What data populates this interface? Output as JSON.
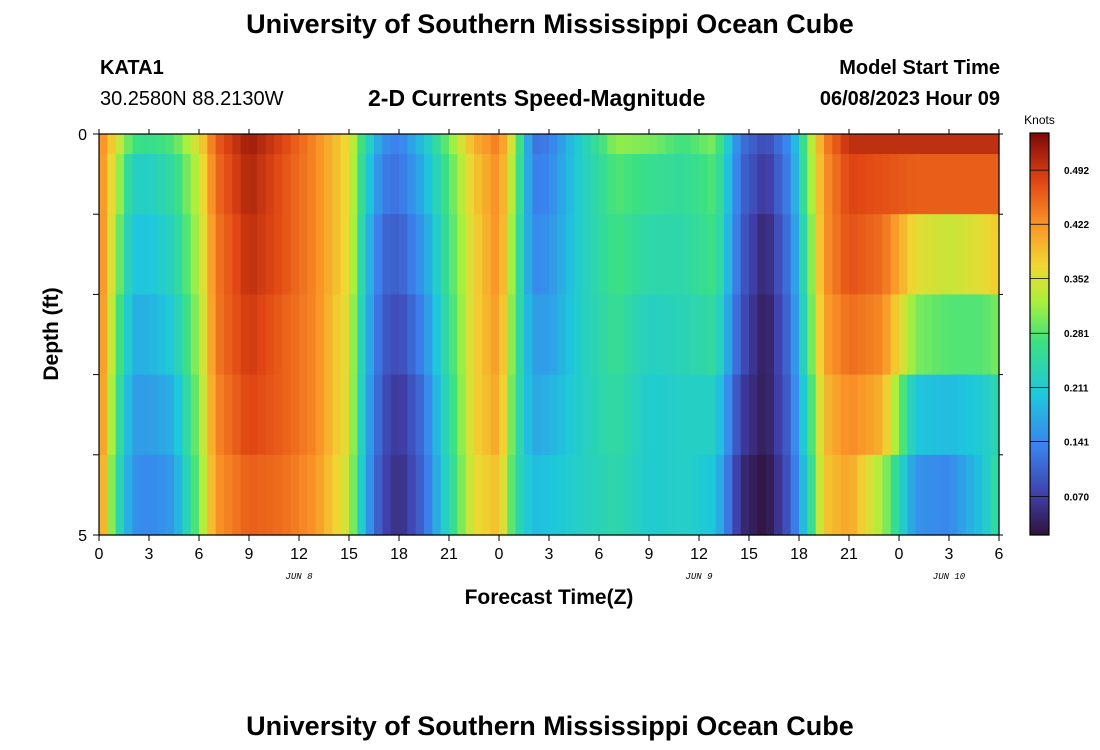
{
  "main_title": "University of Southern Mississippi Ocean Cube",
  "footer_title": "University of Southern Mississippi Ocean Cube",
  "station": {
    "id": "KATA1",
    "coords": "30.2580N  88.2130W"
  },
  "plot_title": "2-D Currents Speed-Magnitude",
  "model_start": {
    "label": "Model Start Time",
    "value": "06/08/2023 Hour 09"
  },
  "chart_data": {
    "type": "heatmap",
    "title": "2-D Currents Speed-Magnitude",
    "xlabel": "Forecast Time(Z)",
    "ylabel": "Depth (ft)",
    "ylim": [
      0,
      5
    ],
    "y_ticks": [
      "0",
      "5"
    ],
    "x_tick_labels": [
      "0",
      "3",
      "6",
      "9",
      "12",
      "15",
      "18",
      "21",
      "0",
      "3",
      "6",
      "9",
      "12",
      "15",
      "18",
      "21",
      "0",
      "3",
      "6"
    ],
    "date_labels": [
      {
        "text": "JUN 8",
        "hour": 12
      },
      {
        "text": "JUN 9",
        "hour": 36
      },
      {
        "text": "JUN 10",
        "hour": 51
      }
    ],
    "x_range_hours": [
      0,
      54
    ],
    "depth_layers": [
      0,
      0.5,
      1.5,
      2.5,
      3.5,
      4.5
    ],
    "colorbar": {
      "title": "Knots",
      "ticks": [
        "0.492",
        "0.422",
        "0.352",
        "0.281",
        "0.211",
        "0.141",
        "0.070"
      ],
      "tick_values": [
        0.492,
        0.422,
        0.352,
        0.281,
        0.211,
        0.141,
        0.07
      ],
      "range": [
        0.02,
        0.54
      ]
    },
    "time_keys": [
      {
        "t": 0,
        "v": [
          0.44,
          0.44,
          0.45,
          0.45,
          0.45,
          0.44
        ]
      },
      {
        "t": 1,
        "v": [
          0.36,
          0.34,
          0.32,
          0.3,
          0.28,
          0.26
        ]
      },
      {
        "t": 2,
        "v": [
          0.27,
          0.22,
          0.2,
          0.18,
          0.16,
          0.15
        ]
      },
      {
        "t": 3,
        "v": [
          0.26,
          0.22,
          0.2,
          0.18,
          0.16,
          0.14
        ]
      },
      {
        "t": 4.5,
        "v": [
          0.28,
          0.25,
          0.23,
          0.21,
          0.18,
          0.16
        ]
      },
      {
        "t": 6,
        "v": [
          0.36,
          0.34,
          0.33,
          0.32,
          0.31,
          0.3
        ]
      },
      {
        "t": 7,
        "v": [
          0.46,
          0.45,
          0.44,
          0.44,
          0.43,
          0.42
        ]
      },
      {
        "t": 9,
        "v": [
          0.52,
          0.51,
          0.5,
          0.49,
          0.48,
          0.46
        ]
      },
      {
        "t": 11,
        "v": [
          0.48,
          0.47,
          0.47,
          0.46,
          0.46,
          0.45
        ]
      },
      {
        "t": 13,
        "v": [
          0.43,
          0.43,
          0.43,
          0.43,
          0.43,
          0.42
        ]
      },
      {
        "t": 15,
        "v": [
          0.36,
          0.36,
          0.36,
          0.35,
          0.35,
          0.34
        ]
      },
      {
        "t": 16,
        "v": [
          0.24,
          0.22,
          0.2,
          0.19,
          0.18,
          0.17
        ]
      },
      {
        "t": 17,
        "v": [
          0.15,
          0.13,
          0.11,
          0.1,
          0.09,
          0.08
        ]
      },
      {
        "t": 18,
        "v": [
          0.13,
          0.12,
          0.1,
          0.08,
          0.06,
          0.05
        ]
      },
      {
        "t": 19.5,
        "v": [
          0.2,
          0.18,
          0.16,
          0.14,
          0.12,
          0.11
        ]
      },
      {
        "t": 21,
        "v": [
          0.3,
          0.28,
          0.27,
          0.26,
          0.25,
          0.24
        ]
      },
      {
        "t": 22.5,
        "v": [
          0.4,
          0.38,
          0.37,
          0.37,
          0.37,
          0.36
        ]
      },
      {
        "t": 24,
        "v": [
          0.44,
          0.43,
          0.43,
          0.42,
          0.41,
          0.39
        ]
      },
      {
        "t": 25,
        "v": [
          0.32,
          0.3,
          0.28,
          0.27,
          0.26,
          0.25
        ]
      },
      {
        "t": 26,
        "v": [
          0.12,
          0.13,
          0.14,
          0.16,
          0.17,
          0.19
        ]
      },
      {
        "t": 27,
        "v": [
          0.13,
          0.14,
          0.15,
          0.16,
          0.18,
          0.2
        ]
      },
      {
        "t": 29,
        "v": [
          0.22,
          0.22,
          0.22,
          0.22,
          0.22,
          0.22
        ]
      },
      {
        "t": 31,
        "v": [
          0.31,
          0.28,
          0.27,
          0.26,
          0.25,
          0.24
        ]
      },
      {
        "t": 33,
        "v": [
          0.3,
          0.26,
          0.24,
          0.22,
          0.21,
          0.21
        ]
      },
      {
        "t": 35,
        "v": [
          0.27,
          0.25,
          0.24,
          0.23,
          0.22,
          0.22
        ]
      },
      {
        "t": 37,
        "v": [
          0.3,
          0.28,
          0.27,
          0.25,
          0.22,
          0.2
        ]
      },
      {
        "t": 38.5,
        "v": [
          0.12,
          0.11,
          0.1,
          0.09,
          0.07,
          0.05
        ]
      },
      {
        "t": 40,
        "v": [
          0.08,
          0.06,
          0.04,
          0.03,
          0.03,
          0.02
        ]
      },
      {
        "t": 41.5,
        "v": [
          0.15,
          0.14,
          0.13,
          0.12,
          0.11,
          0.1
        ]
      },
      {
        "t": 42.5,
        "v": [
          0.3,
          0.29,
          0.27,
          0.26,
          0.24,
          0.22
        ]
      },
      {
        "t": 43.5,
        "v": [
          0.43,
          0.42,
          0.42,
          0.41,
          0.39,
          0.38
        ]
      },
      {
        "t": 45,
        "v": [
          0.5,
          0.48,
          0.47,
          0.45,
          0.43,
          0.41
        ]
      },
      {
        "t": 47,
        "v": [
          0.5,
          0.47,
          0.45,
          0.43,
          0.4,
          0.32
        ]
      },
      {
        "t": 49,
        "v": [
          0.5,
          0.46,
          0.36,
          0.3,
          0.2,
          0.15
        ]
      },
      {
        "t": 51,
        "v": [
          0.5,
          0.46,
          0.34,
          0.28,
          0.19,
          0.14
        ]
      },
      {
        "t": 53,
        "v": [
          0.5,
          0.46,
          0.36,
          0.28,
          0.21,
          0.2
        ]
      },
      {
        "t": 54,
        "v": [
          0.5,
          0.46,
          0.38,
          0.3,
          0.24,
          0.26
        ]
      }
    ]
  }
}
